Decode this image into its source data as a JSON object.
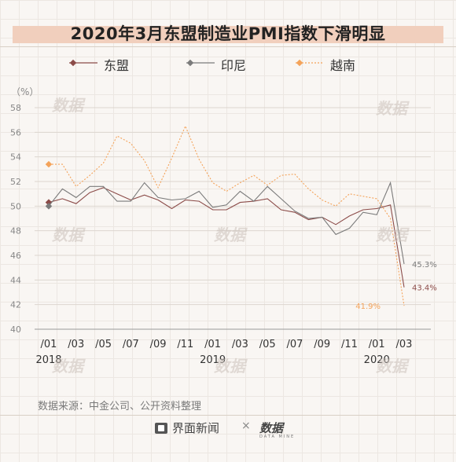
{
  "title": "2020年3月东盟制造业PMI指数下滑明显",
  "source": "数据来源：中金公司、公开资料整理",
  "brand": {
    "left": "界面新闻",
    "separator": "×",
    "right": "数据",
    "right_sub": "DATA MINE"
  },
  "watermark": "数据",
  "chart_data": {
    "type": "line",
    "unit_label": "（%）",
    "ylim": [
      40,
      58
    ],
    "yticks": [
      40,
      42,
      44,
      46,
      48,
      50,
      52,
      54,
      56,
      58
    ],
    "xlim": [
      0,
      26
    ],
    "x": [
      0,
      1,
      2,
      3,
      4,
      5,
      6,
      7,
      8,
      9,
      10,
      11,
      12,
      13,
      14,
      15,
      16,
      17,
      18,
      19,
      20,
      21,
      22,
      23,
      24,
      25,
      26
    ],
    "xtick_labels": [
      {
        "x": 0,
        "label": "/01"
      },
      {
        "x": 2,
        "label": "/03"
      },
      {
        "x": 4,
        "label": "/05"
      },
      {
        "x": 6,
        "label": "/07"
      },
      {
        "x": 8,
        "label": "/09"
      },
      {
        "x": 10,
        "label": "/11"
      },
      {
        "x": 12,
        "label": "/01"
      },
      {
        "x": 14,
        "label": "/03"
      },
      {
        "x": 16,
        "label": "/05"
      },
      {
        "x": 18,
        "label": "/07"
      },
      {
        "x": 20,
        "label": "/09"
      },
      {
        "x": 22,
        "label": "/11"
      },
      {
        "x": 24,
        "label": "/01"
      },
      {
        "x": 26,
        "label": "/03"
      }
    ],
    "year_labels": [
      {
        "x": 0,
        "label": "2018"
      },
      {
        "x": 12,
        "label": "2019"
      },
      {
        "x": 24,
        "label": "2020"
      }
    ],
    "grid": true,
    "legend_position": "top",
    "series": [
      {
        "name": "东盟",
        "color": "#8b4b48",
        "style": "solid",
        "values": [
          50.3,
          50.6,
          50.2,
          51.1,
          51.5,
          51.0,
          50.5,
          50.9,
          50.5,
          49.8,
          50.5,
          50.4,
          49.7,
          49.7,
          50.3,
          50.4,
          50.6,
          49.7,
          49.5,
          48.9,
          49.1,
          48.5,
          49.2,
          49.7,
          49.8,
          50.1,
          43.4
        ],
        "end_label": "43.4%"
      },
      {
        "name": "印尼",
        "color": "#7b7b7b",
        "style": "solid",
        "values": [
          50.0,
          51.4,
          50.7,
          51.6,
          51.6,
          50.4,
          50.4,
          51.9,
          50.7,
          50.5,
          50.6,
          51.2,
          49.9,
          50.1,
          51.2,
          50.4,
          51.6,
          50.6,
          49.6,
          49.0,
          49.1,
          47.7,
          48.2,
          49.5,
          49.3,
          51.9,
          45.3
        ],
        "end_label": "45.3%"
      },
      {
        "name": "越南",
        "color": "#f4a35a",
        "style": "dotted",
        "values": [
          53.4,
          53.4,
          51.6,
          52.5,
          53.5,
          55.7,
          55.1,
          53.7,
          51.5,
          53.9,
          56.5,
          53.8,
          51.9,
          51.2,
          51.9,
          52.5,
          51.7,
          52.5,
          52.6,
          51.4,
          50.5,
          50.0,
          51.0,
          50.8,
          50.6,
          49.0,
          41.9
        ],
        "end_label": "41.9%"
      }
    ]
  }
}
